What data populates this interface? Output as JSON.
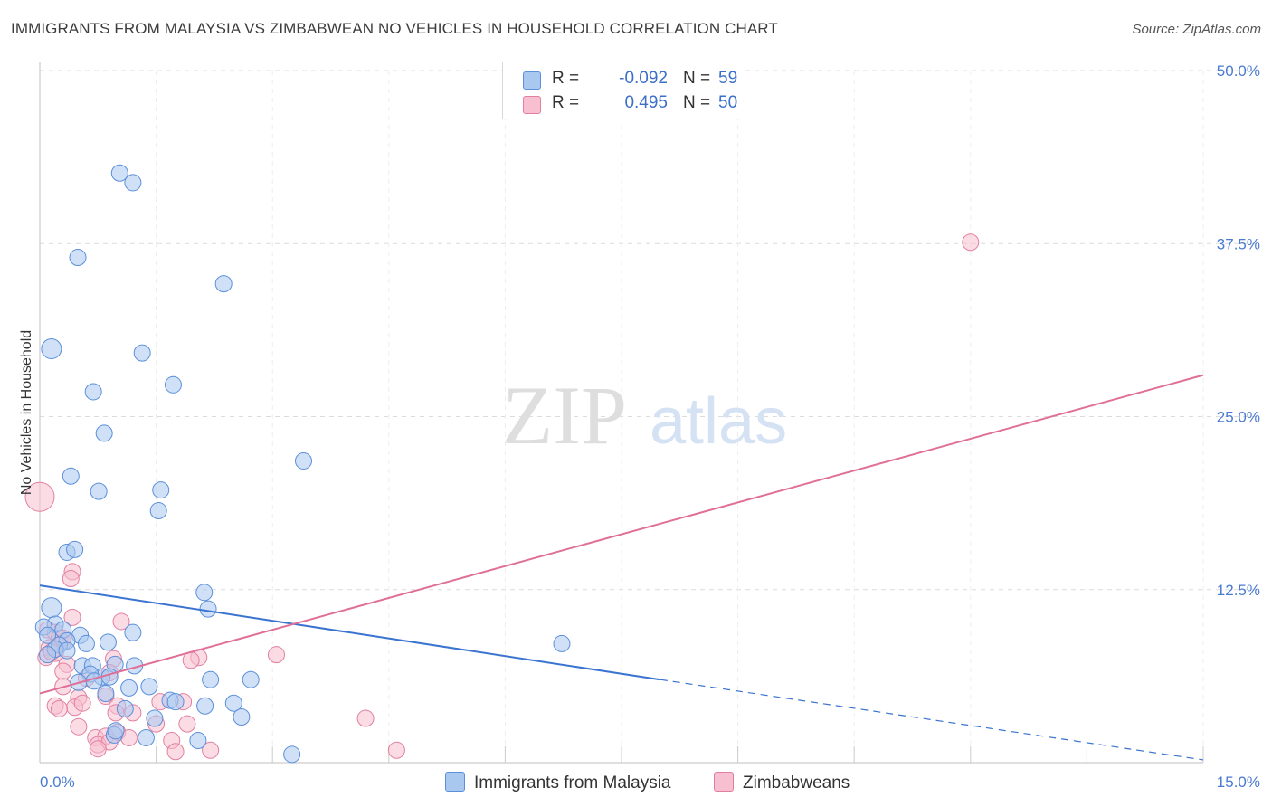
{
  "title": "IMMIGRANTS FROM MALAYSIA VS ZIMBABWEAN NO VEHICLES IN HOUSEHOLD CORRELATION CHART",
  "source": "Source: ZipAtlas.com",
  "watermark": {
    "zip": "ZIP",
    "atlas": "atlas"
  },
  "legend": {
    "series1": {
      "r_label": "R =",
      "r_value": "-0.092",
      "n_label": "N =",
      "n_value": "59",
      "color": "#a9c8f0",
      "border": "#5b8fd9"
    },
    "series2": {
      "r_label": "R =",
      "r_value": "0.495",
      "n_label": "N =",
      "n_value": "50",
      "color": "#f7bfd0",
      "border": "#e27fa0"
    }
  },
  "bottom_legend": {
    "series1": "Immigrants from Malaysia",
    "series2": "Zimbabweans"
  },
  "chart_data": {
    "type": "scatter",
    "xlabel": "",
    "ylabel": "No Vehicles in Household",
    "xlim": [
      0,
      15
    ],
    "ylim": [
      0,
      50
    ],
    "x_tick_labels": [
      "0.0%",
      "15.0%"
    ],
    "y_ticks": [
      12.5,
      25.0,
      37.5,
      50.0
    ],
    "y_tick_labels": [
      "12.5%",
      "25.0%",
      "37.5%",
      "50.0%"
    ],
    "colors": {
      "malaysia_fill": "#a9c8f0",
      "malaysia_stroke": "#5b8fd9",
      "malaysia_line": "#3a73d0",
      "zimbabwe_fill": "#f7bfd0",
      "zimbabwe_stroke": "#e27fa0",
      "zimbabwe_line": "#e06f97",
      "grid": "#dcdcdc",
      "axis": "#cccccc"
    },
    "series": [
      {
        "name": "Immigrants from Malaysia",
        "points": [
          [
            1.03,
            42.6
          ],
          [
            1.2,
            41.9
          ],
          [
            0.49,
            36.5
          ],
          [
            2.37,
            34.6
          ],
          [
            0.15,
            29.9
          ],
          [
            1.32,
            29.6
          ],
          [
            0.69,
            26.8
          ],
          [
            1.72,
            27.3
          ],
          [
            0.83,
            23.8
          ],
          [
            3.4,
            21.8
          ],
          [
            0.4,
            20.7
          ],
          [
            0.76,
            19.6
          ],
          [
            1.56,
            19.7
          ],
          [
            1.53,
            18.2
          ],
          [
            0.35,
            15.2
          ],
          [
            0.45,
            15.4
          ],
          [
            2.12,
            12.3
          ],
          [
            2.17,
            11.1
          ],
          [
            6.73,
            8.6
          ],
          [
            0.15,
            11.2
          ],
          [
            0.2,
            10.0
          ],
          [
            0.05,
            9.8
          ],
          [
            0.3,
            9.6
          ],
          [
            0.1,
            9.2
          ],
          [
            0.52,
            9.2
          ],
          [
            0.35,
            8.8
          ],
          [
            0.25,
            8.5
          ],
          [
            0.6,
            8.6
          ],
          [
            0.88,
            8.7
          ],
          [
            1.2,
            9.4
          ],
          [
            0.2,
            8.2
          ],
          [
            0.35,
            8.1
          ],
          [
            0.1,
            7.8
          ],
          [
            0.55,
            7.0
          ],
          [
            0.68,
            7.0
          ],
          [
            0.97,
            7.1
          ],
          [
            0.8,
            6.2
          ],
          [
            0.65,
            6.4
          ],
          [
            0.9,
            6.2
          ],
          [
            1.22,
            7.0
          ],
          [
            0.5,
            5.8
          ],
          [
            0.7,
            5.9
          ],
          [
            1.15,
            5.4
          ],
          [
            1.41,
            5.5
          ],
          [
            2.2,
            6.0
          ],
          [
            2.72,
            6.0
          ],
          [
            0.85,
            5.0
          ],
          [
            1.68,
            4.5
          ],
          [
            1.75,
            4.4
          ],
          [
            2.13,
            4.1
          ],
          [
            2.5,
            4.3
          ],
          [
            1.1,
            3.9
          ],
          [
            2.6,
            3.3
          ],
          [
            1.48,
            3.2
          ],
          [
            0.96,
            2.0
          ],
          [
            0.98,
            2.3
          ],
          [
            1.37,
            1.8
          ],
          [
            2.04,
            1.6
          ],
          [
            3.25,
            0.6
          ]
        ],
        "trend": {
          "x": [
            0,
            8.0
          ],
          "y": [
            12.8,
            6.0
          ],
          "dashed_to": [
            15.0,
            0.2
          ]
        }
      },
      {
        "name": "Zimbabweans",
        "points": [
          [
            12.0,
            37.6
          ],
          [
            0.0,
            19.2
          ],
          [
            0.42,
            13.8
          ],
          [
            0.4,
            13.3
          ],
          [
            0.42,
            10.5
          ],
          [
            1.05,
            10.2
          ],
          [
            0.1,
            9.6
          ],
          [
            0.2,
            9.4
          ],
          [
            0.25,
            9.0
          ],
          [
            0.3,
            8.7
          ],
          [
            0.12,
            8.3
          ],
          [
            0.2,
            7.9
          ],
          [
            0.08,
            7.6
          ],
          [
            0.35,
            7.1
          ],
          [
            0.3,
            6.6
          ],
          [
            2.05,
            7.6
          ],
          [
            1.95,
            7.4
          ],
          [
            3.05,
            7.8
          ],
          [
            0.95,
            7.5
          ],
          [
            0.6,
            6.1
          ],
          [
            0.9,
            6.5
          ],
          [
            0.3,
            5.5
          ],
          [
            0.5,
            4.7
          ],
          [
            0.85,
            4.8
          ],
          [
            0.45,
            4.0
          ],
          [
            1.0,
            4.1
          ],
          [
            0.2,
            4.1
          ],
          [
            1.55,
            4.4
          ],
          [
            1.85,
            4.4
          ],
          [
            0.98,
            3.6
          ],
          [
            1.2,
            3.6
          ],
          [
            1.5,
            2.8
          ],
          [
            1.9,
            2.8
          ],
          [
            0.5,
            2.6
          ],
          [
            1.0,
            2.2
          ],
          [
            0.72,
            1.8
          ],
          [
            0.85,
            1.9
          ],
          [
            1.15,
            1.8
          ],
          [
            1.7,
            1.6
          ],
          [
            0.75,
            1.3
          ],
          [
            0.9,
            1.5
          ],
          [
            1.75,
            0.8
          ],
          [
            2.2,
            0.9
          ],
          [
            4.6,
            0.9
          ],
          [
            4.2,
            3.2
          ],
          [
            0.75,
            1.0
          ],
          [
            0.55,
            4.3
          ],
          [
            0.25,
            3.9
          ],
          [
            0.3,
            9.0
          ],
          [
            0.15,
            8.0
          ]
        ],
        "trend": {
          "x": [
            0,
            15.0
          ],
          "y": [
            5.0,
            28.0
          ]
        }
      }
    ]
  }
}
